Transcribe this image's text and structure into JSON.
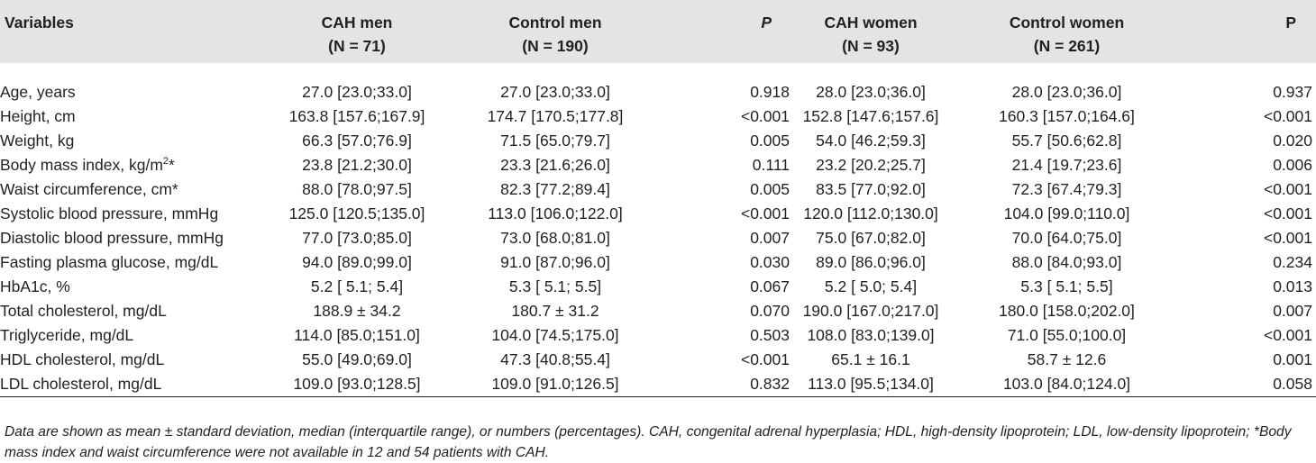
{
  "header": {
    "variables": "Variables",
    "cah_men": "CAH men",
    "cah_men_n": "(N = 71)",
    "control_men": "Control men",
    "control_men_n": "(N = 190)",
    "p1": "P",
    "cah_women": "CAH women",
    "cah_women_n": "(N = 93)",
    "control_women": "Control women",
    "control_women_n": "(N = 261)",
    "p2": "P"
  },
  "rows": [
    {
      "variable": "Age, years",
      "cah_men": "27.0 [23.0;33.0]",
      "control_men": "27.0 [23.0;33.0]",
      "p_men": "0.918",
      "cah_women": "28.0 [23.0;36.0]",
      "control_women": "28.0 [23.0;36.0]",
      "p_women": "0.937"
    },
    {
      "variable": "Height, cm",
      "cah_men": "163.8 [157.6;167.9]",
      "control_men": "174.7 [170.5;177.8]",
      "p_men": "<0.001",
      "cah_women": "152.8 [147.6;157.6]",
      "control_women": "160.3 [157.0;164.6]",
      "p_women": "<0.001"
    },
    {
      "variable": "Weight, kg",
      "cah_men": "66.3 [57.0;76.9]",
      "control_men": "71.5 [65.0;79.7]",
      "p_men": "0.005",
      "cah_women": "54.0 [46.2;59.3]",
      "control_women": "55.7 [50.6;62.8]",
      "p_women": "0.020"
    },
    {
      "variable_pre": "Body mass index, kg/m",
      "variable_sup": "2",
      "variable_post": "*",
      "cah_men": "23.8 [21.2;30.0]",
      "control_men": "23.3 [21.6;26.0]",
      "p_men": "0.111",
      "cah_women": "23.2 [20.2;25.7]",
      "control_women": "21.4 [19.7;23.6]",
      "p_women": "0.006"
    },
    {
      "variable": "Waist circumference, cm*",
      "cah_men": "88.0 [78.0;97.5]",
      "control_men": "82.3 [77.2;89.4]",
      "p_men": "0.005",
      "cah_women": "83.5 [77.0;92.0]",
      "control_women": "72.3 [67.4;79.3]",
      "p_women": "<0.001"
    },
    {
      "variable": "Systolic blood pressure, mmHg",
      "cah_men": "125.0 [120.5;135.0]",
      "control_men": "113.0 [106.0;122.0]",
      "p_men": "<0.001",
      "cah_women": "120.0 [112.0;130.0]",
      "control_women": "104.0 [99.0;110.0]",
      "p_women": "<0.001"
    },
    {
      "variable": "Diastolic blood pressure, mmHg",
      "cah_men": "77.0 [73.0;85.0]",
      "control_men": "73.0 [68.0;81.0]",
      "p_men": "0.007",
      "cah_women": "75.0 [67.0;82.0]",
      "control_women": "70.0 [64.0;75.0]",
      "p_women": "<0.001"
    },
    {
      "variable": "Fasting plasma glucose, mg/dL",
      "cah_men": "94.0 [89.0;99.0]",
      "control_men": "91.0 [87.0;96.0]",
      "p_men": "0.030",
      "cah_women": "89.0 [86.0;96.0]",
      "control_women": "88.0 [84.0;93.0]",
      "p_women": "0.234"
    },
    {
      "variable": "HbA1c, %",
      "cah_men": "5.2 [ 5.1; 5.4]",
      "control_men": "5.3 [ 5.1; 5.5]",
      "p_men": "0.067",
      "cah_women": "5.2 [ 5.0; 5.4]",
      "control_women": "5.3 [ 5.1; 5.5]",
      "p_women": "0.013"
    },
    {
      "variable": "Total cholesterol, mg/dL",
      "cah_men": "188.9 ± 34.2",
      "control_men": "180.7 ± 31.2",
      "p_men": "0.070",
      "cah_women": "190.0 [167.0;217.0]",
      "control_women": "180.0 [158.0;202.0]",
      "p_women": "0.007"
    },
    {
      "variable": "Triglyceride, mg/dL",
      "cah_men": "114.0 [85.0;151.0]",
      "control_men": "104.0 [74.5;175.0]",
      "p_men": "0.503",
      "cah_women": "108.0 [83.0;139.0]",
      "control_women": "71.0 [55.0;100.0]",
      "p_women": "<0.001"
    },
    {
      "variable": "HDL cholesterol, mg/dL",
      "cah_men": "55.0 [49.0;69.0]",
      "control_men": "47.3 [40.8;55.4]",
      "p_men": "<0.001",
      "cah_women": "65.1 ± 16.1",
      "control_women": "58.7 ± 12.6",
      "p_women": "0.001"
    },
    {
      "variable": "LDL cholesterol, mg/dL",
      "cah_men": "109.0 [93.0;128.5]",
      "control_men": "109.0 [91.0;126.5]",
      "p_men": "0.832",
      "cah_women": "113.0 [95.5;134.0]",
      "control_women": "103.0 [84.0;124.0]",
      "p_women": "0.058"
    }
  ],
  "footnote": "Data are shown as mean ± standard deviation, median (interquartile range), or numbers (percentages). CAH, congenital adrenal hyperplasia; HDL, high-density lipoprotein; LDL, low-density lipoprotein; *Body mass index and waist circumference were not available in 12 and 54 patients with CAH."
}
